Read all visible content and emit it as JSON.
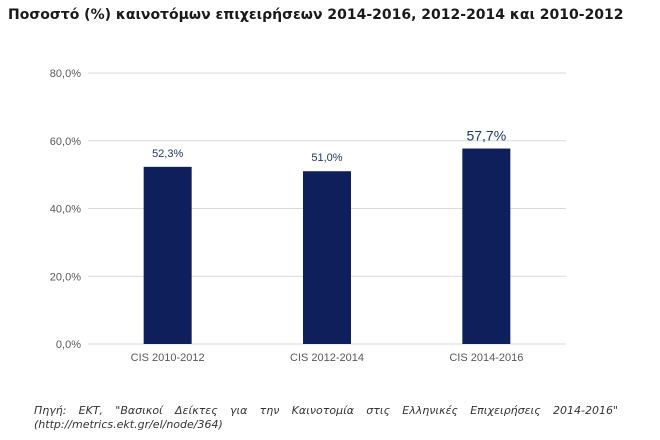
{
  "chart_title": "Ποσοστό (%) καινοτόμων επιχειρήσεων 2014-2016, 2012-2014 και 2010-2012",
  "source_text": "Πηγή: ΕΚΤ, \"Βασικοί Δείκτες για την Καινοτομία στις Ελληνικές Επιχειρήσεις 2014-2016\" (http://metrics.ekt.gr/el/node/364)",
  "colors": {
    "bar": "#0e1f5c",
    "grid": "#d9d9d9",
    "axis_text": "#595959",
    "label_text": "#1f3864"
  },
  "chart_data": {
    "type": "bar",
    "title": "Ποσοστό (%) καινοτόμων επιχειρήσεων 2014-2016, 2012-2014 και 2010-2012",
    "categories": [
      "CIS 2010-2012",
      "CIS 2012-2014",
      "CIS 2014-2016"
    ],
    "values": [
      52.3,
      51.0,
      57.7
    ],
    "data_labels": [
      "52,3%",
      "51,0%",
      "57,7%"
    ],
    "ylim": [
      0,
      80
    ],
    "yticks": [
      0,
      20,
      40,
      60,
      80
    ],
    "ytick_labels": [
      "0,0%",
      "20,0%",
      "40,0%",
      "60,0%",
      "80,0%"
    ],
    "xlabel": "",
    "ylabel": "",
    "grid": true,
    "legend": "none"
  }
}
